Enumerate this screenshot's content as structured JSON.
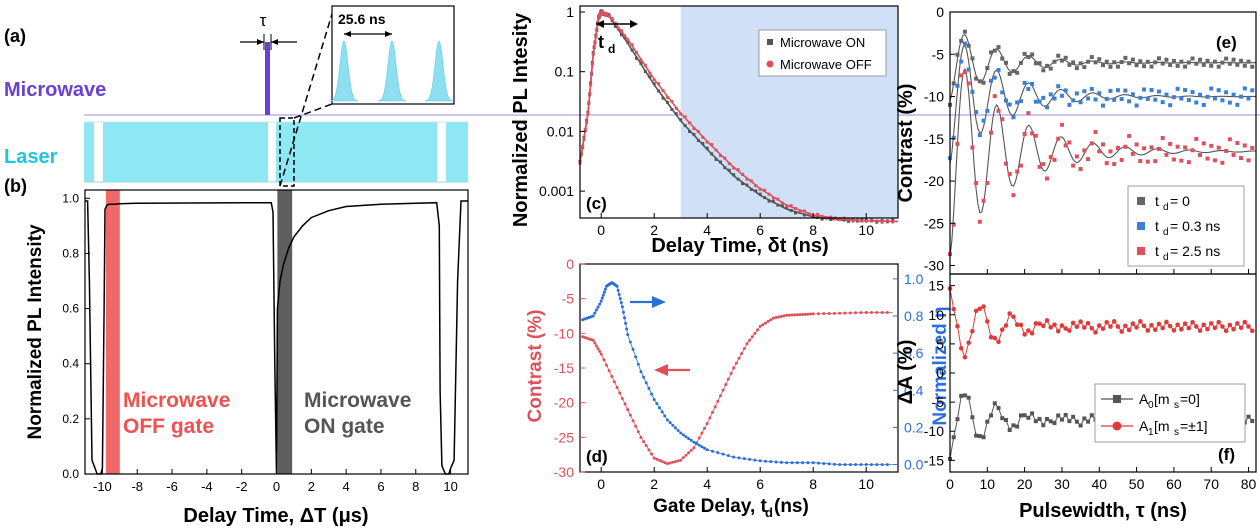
{
  "chart_data": [
    {
      "id": "a",
      "panel_label": "(a)",
      "type": "other",
      "labels": {
        "tau": "τ",
        "microwave": "Microwave",
        "laser": "Laser",
        "period": "25.6 ns"
      },
      "colors": {
        "microwave": "#6a3fd6",
        "laser": "#8ee8f4",
        "inset_pulse": "#8ee0f0"
      }
    },
    {
      "id": "b",
      "panel_label": "(b)",
      "type": "line",
      "xlabel": "Delay Time, ΔT (μs)",
      "ylabel": "Normalized PL Intensity",
      "xlim": [
        -11,
        11
      ],
      "ylim": [
        0,
        1.03
      ],
      "xticks": [
        "-10",
        "-8",
        "-6",
        "-4",
        "-2",
        "0",
        "2",
        "4",
        "6",
        "8",
        "10"
      ],
      "yticks": [
        "0.0",
        "0.2",
        "0.4",
        "0.6",
        "0.8",
        "1.0"
      ],
      "annotations": {
        "off_line1": "Microwave",
        "off_line2": "OFF gate",
        "on_line1": "Microwave",
        "on_line2": "ON gate"
      },
      "gates": [
        {
          "name": "OFF",
          "x0": -9.8,
          "x1": -9.0,
          "color": "#f06060"
        },
        {
          "name": "ON",
          "x0": 0.05,
          "x1": 0.9,
          "color": "#555555"
        }
      ],
      "series": [
        {
          "x": [
            -11,
            -10.85,
            -10.75,
            -10.6,
            -10.3,
            -10.1,
            -10.0,
            -9.9,
            -9.85,
            -9.75,
            -9.6,
            -9.3,
            -9.0,
            -8.0,
            -5.0,
            -2.0,
            -0.3,
            -0.2,
            -0.1,
            0.0,
            0.05,
            0.2,
            0.4,
            0.7,
            1.0,
            1.5,
            2.0,
            3.0,
            4.0,
            6.0,
            8.0,
            9.2,
            9.35,
            9.4,
            9.5,
            9.7,
            9.9,
            10.0,
            10.2,
            10.4,
            10.6,
            11
          ],
          "values": [
            0.99,
            0.99,
            0.7,
            0.05,
            0.0,
            0.0,
            0.02,
            0.6,
            0.96,
            0.975,
            0.978,
            0.978,
            0.98,
            0.982,
            0.983,
            0.984,
            0.984,
            0.95,
            0.4,
            0.0,
            0.6,
            0.7,
            0.76,
            0.82,
            0.86,
            0.9,
            0.93,
            0.955,
            0.97,
            0.978,
            0.982,
            0.984,
            0.9,
            0.3,
            0.03,
            0.0,
            0.0,
            0.02,
            0.05,
            0.7,
            0.99,
            0.99
          ]
        }
      ]
    },
    {
      "id": "c",
      "panel_label": "(c)",
      "type": "line",
      "xlabel": "Delay Time, δt (ns)",
      "ylabel": "Normalized PL Intesity",
      "xlim": [
        -0.8,
        11.2
      ],
      "ylim_log10": [
        -3.45,
        0.1
      ],
      "xticks": [
        "0",
        "2",
        "4",
        "6",
        "8",
        "10"
      ],
      "yticks": [
        "0.001",
        "0.01",
        "0.1",
        "1"
      ],
      "shaded_from_x": 3,
      "td_label": "t",
      "td_sub": "d",
      "legend": [
        "Microwave ON",
        "Microwave OFF"
      ],
      "legend_position": "top-right",
      "series": [
        {
          "name": "Microwave ON",
          "color": "#555555",
          "x": [
            -0.8,
            -0.5,
            -0.3,
            -0.1,
            0.0,
            0.3,
            1,
            2,
            3,
            4,
            5,
            6,
            7,
            8,
            9,
            10,
            11.2
          ],
          "values": [
            0.003,
            0.02,
            0.2,
            0.8,
            1.0,
            0.85,
            0.3,
            0.06,
            0.015,
            0.005,
            0.0018,
            0.00085,
            0.0005,
            0.00037,
            0.00033,
            0.00032,
            0.00031
          ]
        },
        {
          "name": "Microwave OFF",
          "color": "#e0505c",
          "x": [
            -0.8,
            -0.5,
            -0.3,
            -0.1,
            0.0,
            0.3,
            1,
            2,
            3,
            4,
            5,
            6,
            7,
            8,
            9,
            10,
            11.2
          ],
          "values": [
            0.003,
            0.02,
            0.2,
            0.8,
            1.0,
            0.87,
            0.35,
            0.075,
            0.02,
            0.0068,
            0.0025,
            0.0011,
            0.00058,
            0.0004,
            0.00034,
            0.00032,
            0.00031
          ]
        }
      ]
    },
    {
      "id": "d",
      "panel_label": "(d)",
      "type": "line",
      "xlabel": "Gate Delay, t",
      "xlabel_sub": "d",
      "xlabel_unit": " (ns)",
      "ylabel_left": "Contrast (%)",
      "ylabel_right": "Normalized η",
      "xlim": [
        -0.8,
        11.2
      ],
      "ylim_left": [
        -30,
        0
      ],
      "ylim_right": [
        -0.04,
        1.08
      ],
      "xticks": [
        "0",
        "2",
        "4",
        "6",
        "8",
        "10"
      ],
      "yticks_left": [
        "0",
        "-5",
        "-10",
        "-15",
        "-20",
        "-25",
        "-30"
      ],
      "yticks_right": [
        "0.0",
        "0.2",
        "0.4",
        "0.6",
        "0.8",
        "1.0"
      ],
      "series": [
        {
          "name": "Contrast",
          "axis": "left",
          "color": "#e0505c",
          "x": [
            -0.7,
            -0.3,
            0,
            0.5,
            1,
            1.5,
            2,
            2.5,
            3,
            3.5,
            4,
            4.5,
            5,
            5.5,
            6,
            6.5,
            7,
            7.5,
            8,
            9,
            10,
            11
          ],
          "values": [
            -10.5,
            -11,
            -13,
            -17,
            -21,
            -25,
            -28,
            -28.8,
            -28.3,
            -26.5,
            -23,
            -19,
            -15,
            -11.5,
            -9,
            -7.8,
            -7.4,
            -7.3,
            -7.2,
            -7.1,
            -7.0,
            -7.0
          ]
        },
        {
          "name": "Normalized η",
          "axis": "right",
          "color": "#2a6fdc",
          "x": [
            -0.7,
            -0.3,
            0,
            0.2,
            0.4,
            0.6,
            0.8,
            1,
            1.5,
            2,
            2.5,
            3,
            3.5,
            4,
            5,
            6,
            7,
            8,
            9,
            10,
            11
          ],
          "values": [
            0.78,
            0.8,
            0.88,
            0.96,
            0.98,
            0.96,
            0.85,
            0.7,
            0.5,
            0.35,
            0.24,
            0.17,
            0.12,
            0.08,
            0.04,
            0.02,
            0.01,
            0.01,
            0.0,
            0.0,
            0.0
          ]
        }
      ]
    },
    {
      "id": "e",
      "panel_label": "(e)",
      "type": "scatter",
      "ylabel": "Contrast (%)",
      "xlim": [
        0,
        82
      ],
      "ylim": [
        -31,
        0
      ],
      "yticks": [
        "0",
        "-5",
        "-10",
        "-15",
        "-20",
        "-25",
        "-30"
      ],
      "legend_t": "t",
      "legend_sub": "d",
      "legend": [
        " = 0",
        " = 0.3 ns",
        " = 2.5 ns"
      ],
      "legend_position": "bottom-right",
      "series": [
        {
          "name": "td0",
          "color": "#666666",
          "offset": -6,
          "amp": [
            -4.5,
            3.5
          ],
          "decay": 12,
          "period": 8.6
        },
        {
          "name": "td03",
          "color": "#3a7fd8",
          "offset": -10,
          "amp": [
            -8,
            6
          ],
          "decay": 13,
          "period": 8.6
        },
        {
          "name": "td25",
          "color": "#e0505c",
          "offset": -16.5,
          "amp": [
            -12.5,
            8
          ],
          "decay": 15,
          "period": 8.6
        }
      ]
    },
    {
      "id": "f",
      "panel_label": "(f)",
      "type": "line",
      "xlabel": "Pulsewidth, τ (ns)",
      "ylabel": "ΔA (%)",
      "xlim": [
        0,
        82
      ],
      "ylim": [
        -17,
        17
      ],
      "xticks": [
        "0",
        "10",
        "20",
        "30",
        "40",
        "50",
        "60",
        "70",
        "80"
      ],
      "yticks": [
        "15",
        "10",
        "5",
        "0",
        "-5",
        "-10",
        "-15"
      ],
      "legend_A0": "A",
      "legend_A0_sub": "0",
      "legend_A0_text": " [m",
      "legend_A0_sub2": "s",
      "legend_A0_end": "=0]",
      "legend_A1": "A",
      "legend_A1_sub": "1",
      "legend_A1_text": " [m",
      "legend_A1_sub2": "s",
      "legend_A1_end": "=±1]",
      "legend_position": "bottom-right",
      "series": [
        {
          "name": "A0",
          "color": "#555555",
          "offset": -8,
          "amp": [
            -6,
            4.5
          ],
          "decay": 12,
          "period": 8.6
        },
        {
          "name": "A1",
          "color": "#e03a3a",
          "offset": 8,
          "amp": [
            6,
            -5
          ],
          "decay": 13,
          "period": 8.6
        }
      ]
    }
  ]
}
